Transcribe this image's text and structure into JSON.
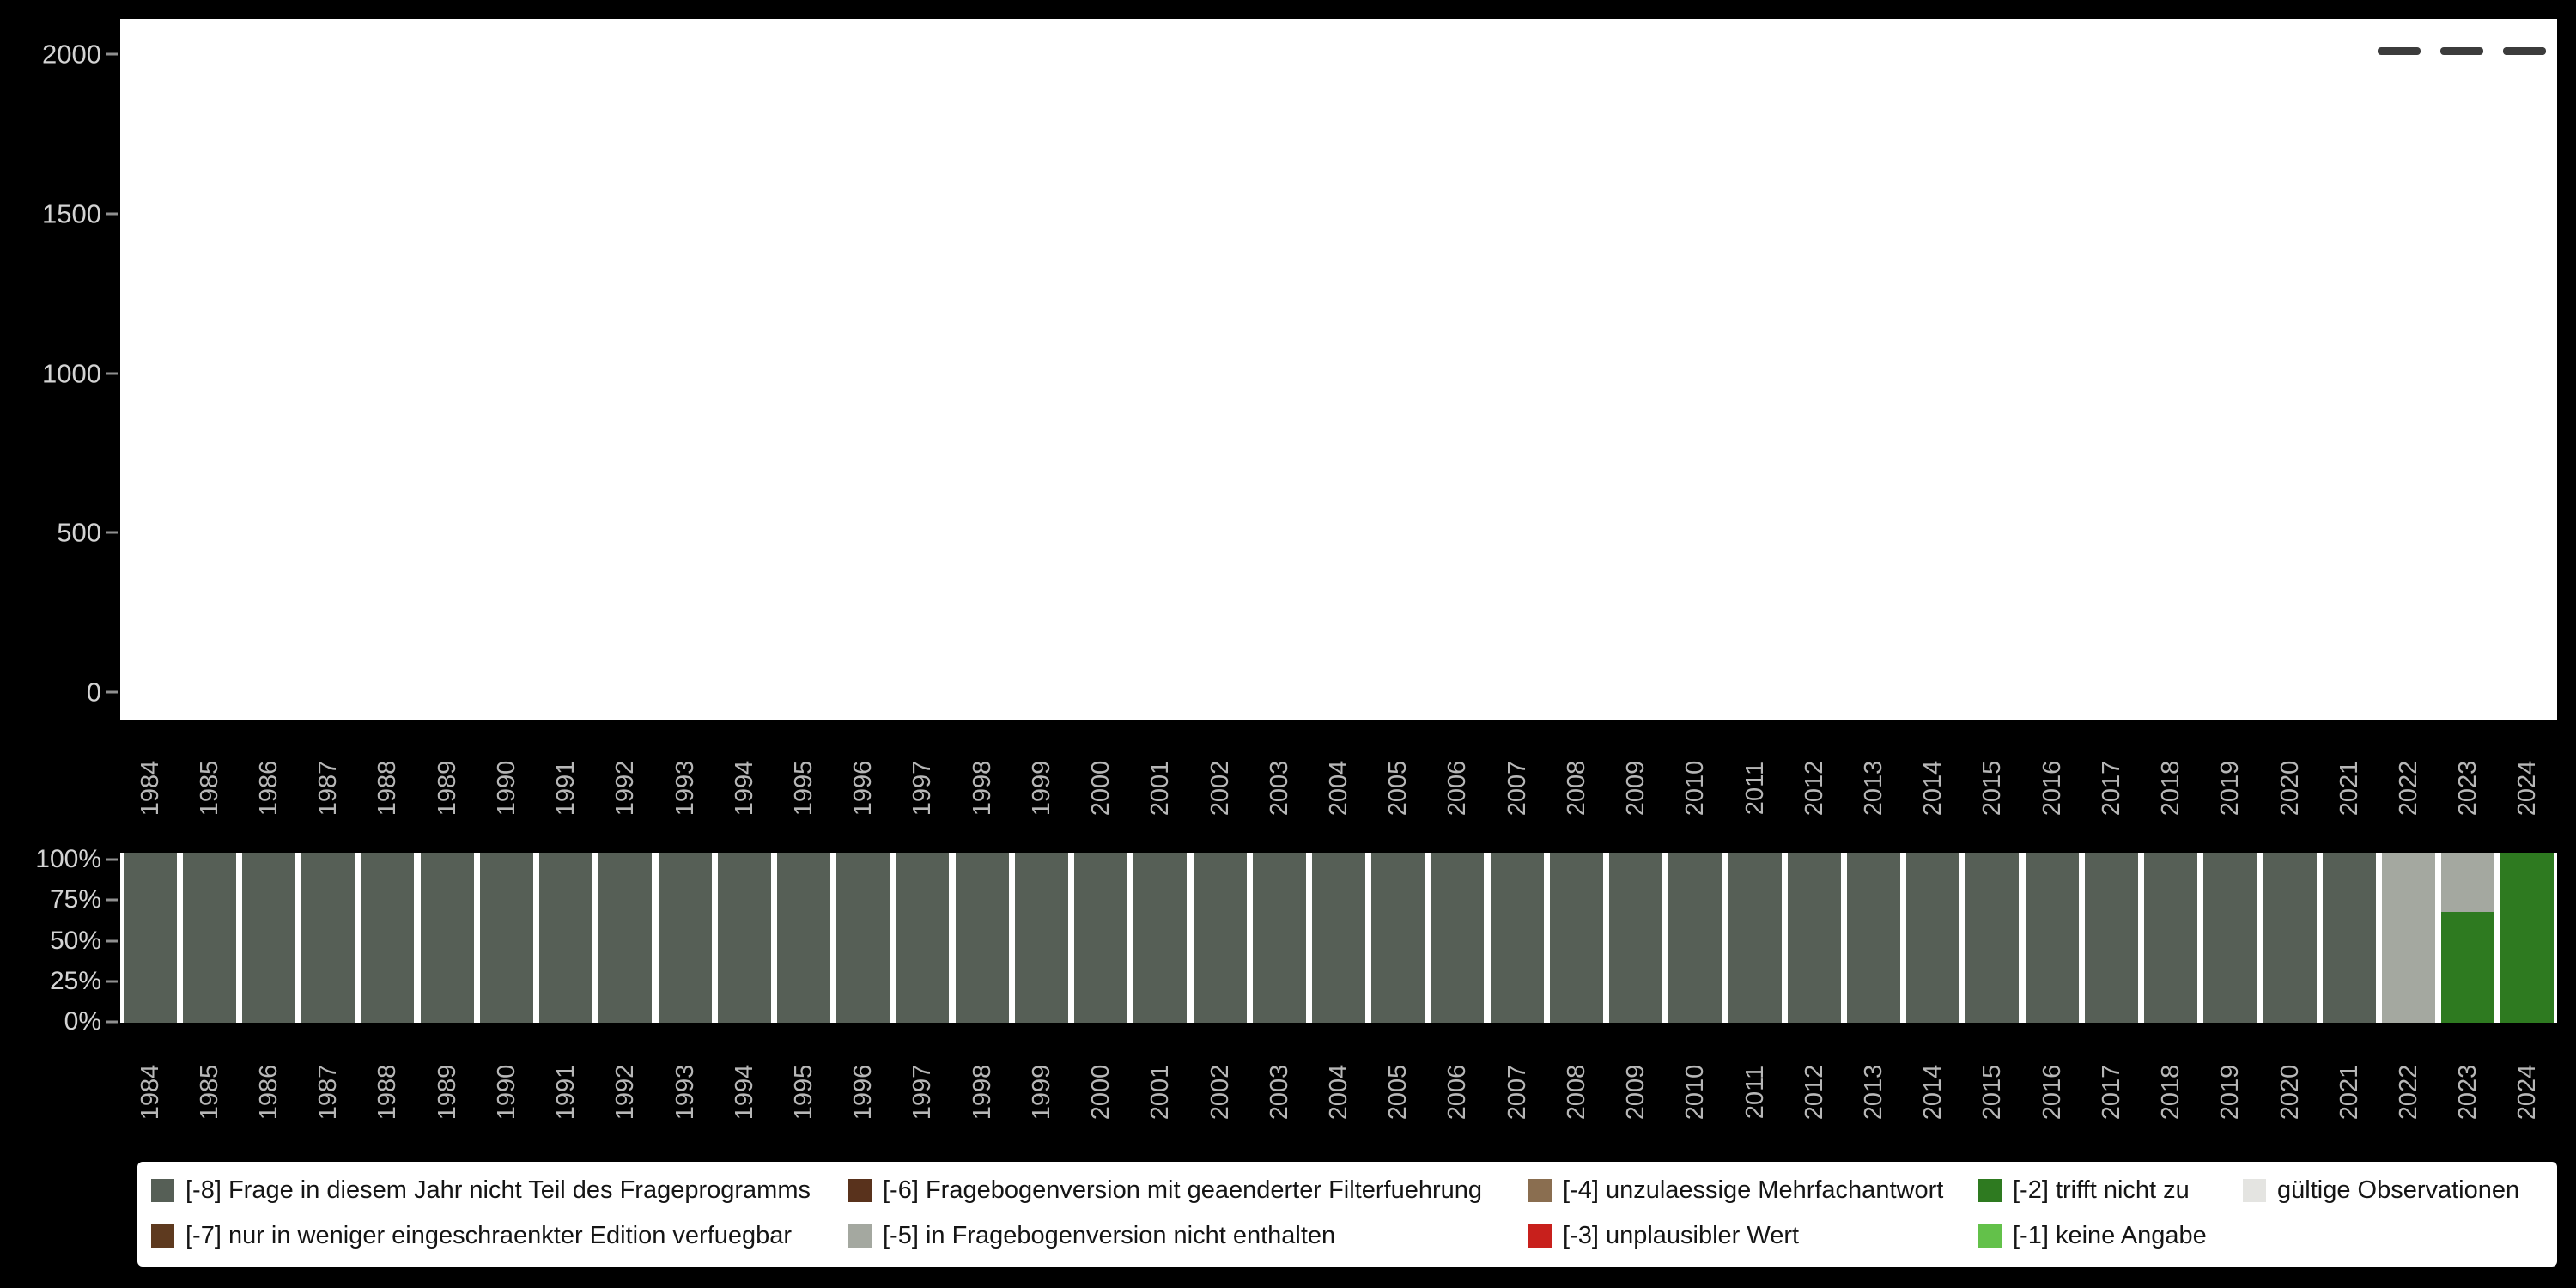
{
  "page": {
    "background": "#000000"
  },
  "top_chart": {
    "ytick_labels": [
      "2000",
      "1500",
      "1000",
      "500",
      "0"
    ],
    "menu_icon": "three-dashes-menu",
    "menu_dash_count": 3
  },
  "bottom_chart": {
    "ytick_labels": [
      "100%",
      "75%",
      "50%",
      "25%",
      "0%"
    ]
  },
  "legend": {
    "rows": [
      [
        {
          "key": "m8",
          "label": "[-8] Frage in diesem Jahr nicht Teil des Frageprogramms",
          "color": "#565f56"
        },
        {
          "key": "m6",
          "label": "[-6] Fragebogenversion mit geaenderter Filterfuehrung",
          "color": "#59321c"
        },
        {
          "key": "m4",
          "label": "[-4] unzulaessige Mehrfachantwort",
          "color": "#8a6e50"
        },
        {
          "key": "m2",
          "label": "[-2] trifft nicht zu",
          "color": "#2e7a20"
        },
        {
          "key": "valid",
          "label": "gültige Observationen",
          "color": "#e4e4e1"
        }
      ],
      [
        {
          "key": "m7",
          "label": "[-7] nur in weniger eingeschraenkter Edition verfuegbar",
          "color": "#5e3a1f"
        },
        {
          "key": "m5",
          "label": "[-5] in Fragebogenversion nicht enthalten",
          "color": "#a4a8a0"
        },
        {
          "key": "m3",
          "label": "[-3] unplausibler Wert",
          "color": "#c8201c"
        },
        {
          "key": "m1",
          "label": "[-1] keine Angabe",
          "color": "#63c14a"
        }
      ]
    ]
  },
  "chart_data": [
    {
      "type": "bar",
      "title": "",
      "xlabel": "",
      "ylabel": "",
      "categories": [
        "1984",
        "1985",
        "1986",
        "1987",
        "1988",
        "1989",
        "1990",
        "1991",
        "1992",
        "1993",
        "1994",
        "1995",
        "1996",
        "1997",
        "1998",
        "1999",
        "2000",
        "2001",
        "2002",
        "2003",
        "2004",
        "2005",
        "2006",
        "2007",
        "2008",
        "2009",
        "2010",
        "2011",
        "2012",
        "2013",
        "2014",
        "2015",
        "2016",
        "2017",
        "2018",
        "2019",
        "2020",
        "2021",
        "2022",
        "2023",
        "2024"
      ],
      "ylim": [
        0,
        2000
      ],
      "yticks": [
        0,
        500,
        1000,
        1500,
        2000
      ],
      "grid": false,
      "series": []
    },
    {
      "type": "bar",
      "stacked": true,
      "unit": "percent",
      "title": "",
      "xlabel": "",
      "ylabel": "",
      "categories": [
        "1984",
        "1985",
        "1986",
        "1987",
        "1988",
        "1989",
        "1990",
        "1991",
        "1992",
        "1993",
        "1994",
        "1995",
        "1996",
        "1997",
        "1998",
        "1999",
        "2000",
        "2001",
        "2002",
        "2003",
        "2004",
        "2005",
        "2006",
        "2007",
        "2008",
        "2009",
        "2010",
        "2011",
        "2012",
        "2013",
        "2014",
        "2015",
        "2016",
        "2017",
        "2018",
        "2019",
        "2020",
        "2021",
        "2022",
        "2023",
        "2024"
      ],
      "ylim": [
        0,
        100
      ],
      "yticks": [
        0,
        25,
        50,
        75,
        100
      ],
      "grid": false,
      "legend_position": "bottom",
      "series": [
        {
          "name": "[-8] Frage in diesem Jahr nicht Teil des Frageprogramms",
          "color": "#565f56",
          "values": [
            100,
            100,
            100,
            100,
            100,
            100,
            100,
            100,
            100,
            100,
            100,
            100,
            100,
            100,
            100,
            100,
            100,
            100,
            100,
            100,
            100,
            100,
            100,
            100,
            100,
            100,
            100,
            100,
            100,
            100,
            100,
            100,
            100,
            100,
            100,
            100,
            100,
            100,
            0,
            0,
            0
          ]
        },
        {
          "name": "[-5] in Fragebogenversion nicht enthalten",
          "color": "#a4a8a0",
          "values": [
            0,
            0,
            0,
            0,
            0,
            0,
            0,
            0,
            0,
            0,
            0,
            0,
            0,
            0,
            0,
            0,
            0,
            0,
            0,
            0,
            0,
            0,
            0,
            0,
            0,
            0,
            0,
            0,
            0,
            0,
            0,
            0,
            0,
            0,
            0,
            0,
            0,
            0,
            100,
            35,
            0
          ]
        },
        {
          "name": "[-2] trifft nicht zu",
          "color": "#2e7a20",
          "values": [
            0,
            0,
            0,
            0,
            0,
            0,
            0,
            0,
            0,
            0,
            0,
            0,
            0,
            0,
            0,
            0,
            0,
            0,
            0,
            0,
            0,
            0,
            0,
            0,
            0,
            0,
            0,
            0,
            0,
            0,
            0,
            0,
            0,
            0,
            0,
            0,
            0,
            0,
            0,
            65,
            100
          ]
        }
      ]
    }
  ]
}
